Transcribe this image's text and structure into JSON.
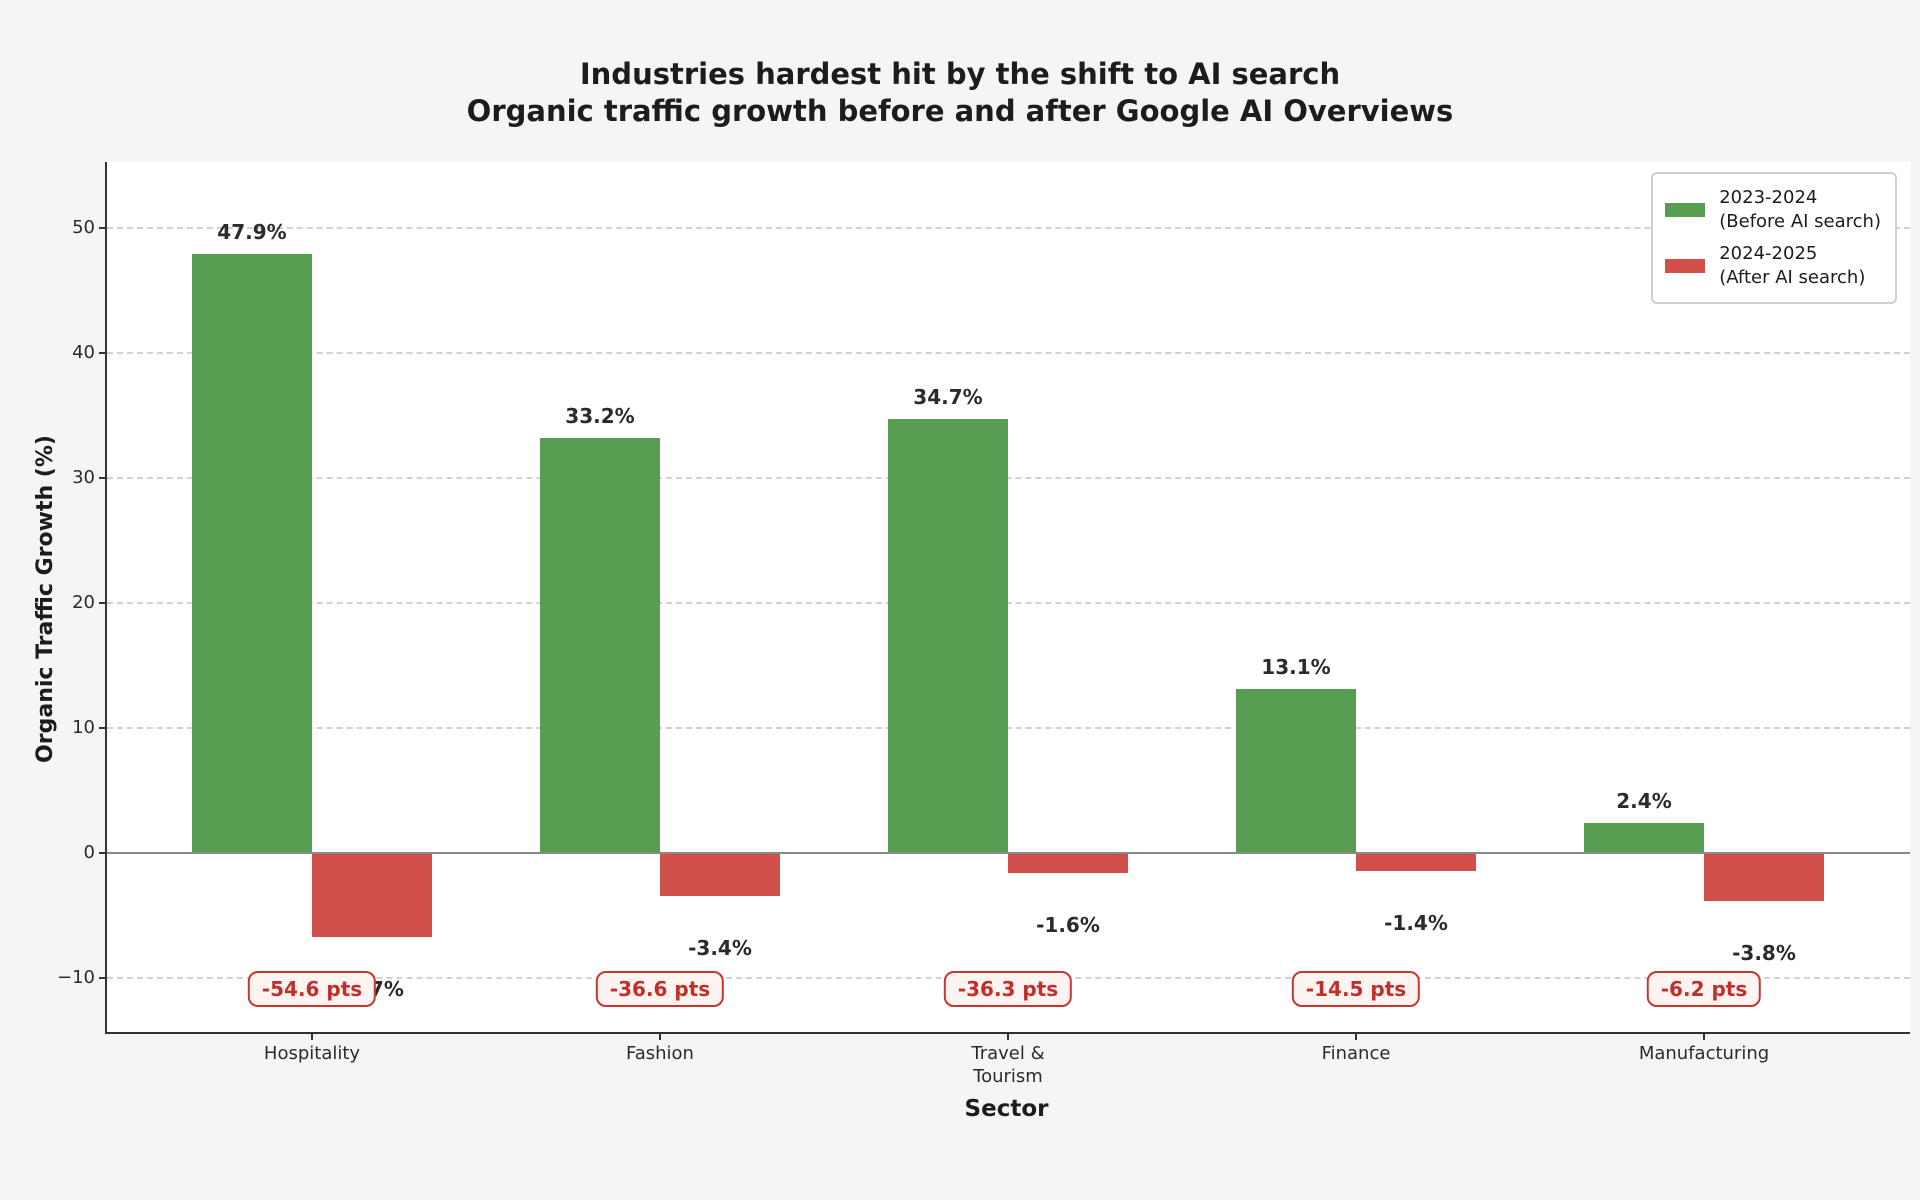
{
  "chart_data": {
    "type": "bar",
    "title": "Industries hardest hit by the shift to AI search",
    "subtitle": "Organic traffic growth before and after Google AI Overviews",
    "xlabel": "Sector",
    "ylabel": "Organic Traffic Growth (%)",
    "categories": [
      "Hospitality",
      "Fashion",
      "Travel &\nTourism",
      "Finance",
      "Manufacturing"
    ],
    "yticks": [
      50,
      40,
      30,
      20,
      10,
      0,
      -10
    ],
    "ylim": [
      -14.3,
      55.3
    ],
    "grid": "horizontal-dashed",
    "legend_position": "upper-right",
    "series": [
      {
        "name": "2023-2024\n(Before AI search)",
        "color": "#579d52",
        "values": [
          47.9,
          33.2,
          34.7,
          13.1,
          2.4
        ],
        "labels": [
          "47.9%",
          "33.2%",
          "34.7%",
          "13.1%",
          "2.4%"
        ]
      },
      {
        "name": "2024-2025\n(After AI search)",
        "color": "#d04f4b",
        "values": [
          -6.7,
          -3.4,
          -1.6,
          -1.4,
          -3.8
        ],
        "labels": [
          "-6.7%",
          "-3.4%",
          "-1.6%",
          "-1.4%",
          "-3.8%"
        ]
      }
    ],
    "annotations": [
      {
        "label": "-54.6 pts"
      },
      {
        "label": "-36.6 pts"
      },
      {
        "label": "-36.3 pts"
      },
      {
        "label": "-14.5 pts"
      },
      {
        "label": "-6.2 pts"
      }
    ],
    "colors": {
      "before": "#579d52",
      "after": "#d04f4b",
      "annotation_text": "#c22f2a",
      "annotation_border": "#c63631",
      "annotation_bg": "#fdf4f2",
      "grid": "#d2d2d2",
      "zero_line": "#8a8a8a",
      "figure_bg": "#f5f5f3",
      "plot_bg": "#ffffff",
      "text": "#262626"
    }
  }
}
